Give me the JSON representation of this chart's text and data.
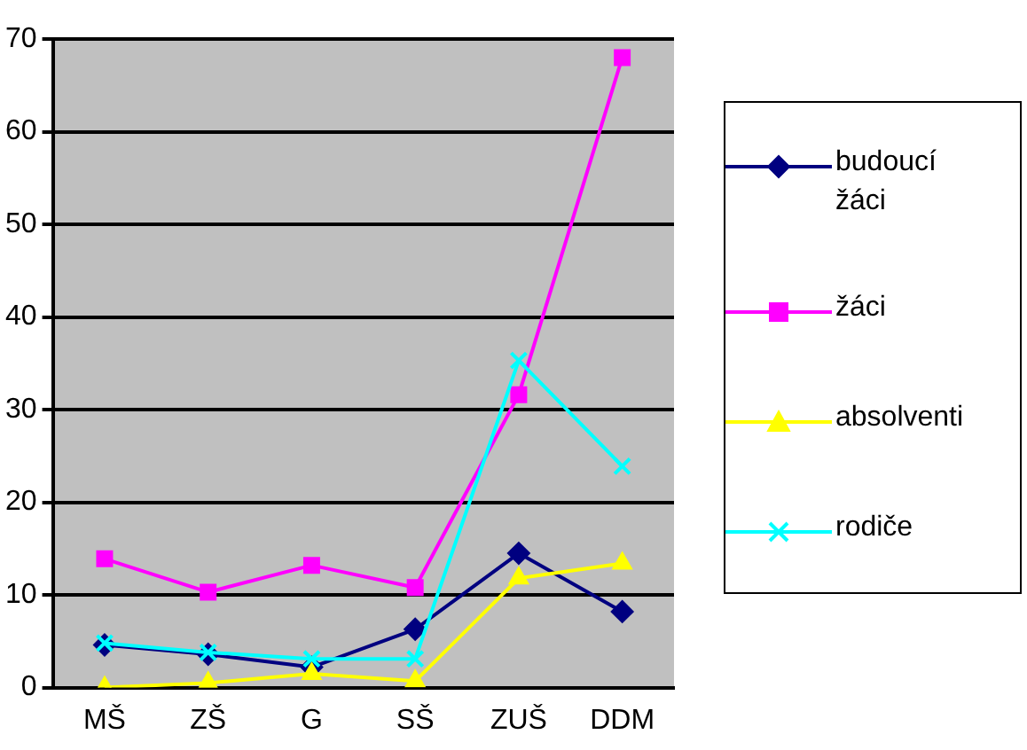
{
  "chart_data": {
    "type": "line",
    "categories": [
      "MŠ",
      "ZŠ",
      "G",
      "SŠ",
      "ZUŠ",
      "DDM"
    ],
    "series": [
      {
        "name": "budoucí žáci",
        "color": "#000080",
        "marker": "diamond",
        "values": [
          4.6,
          3.6,
          2.2,
          6.3,
          14.5,
          8.2
        ]
      },
      {
        "name": "žáci",
        "color": "#ff00ff",
        "marker": "square",
        "values": [
          13.9,
          10.3,
          13.2,
          10.8,
          31.6,
          68
        ]
      },
      {
        "name": "absolventi",
        "color": "#ffff00",
        "marker": "triangle",
        "values": [
          0,
          0.5,
          1.5,
          0.7,
          11.8,
          13.4
        ]
      },
      {
        "name": "rodiče",
        "color": "#00ffff",
        "marker": "cross",
        "values": [
          4.8,
          3.8,
          3.1,
          3.1,
          35.3,
          23.9
        ]
      }
    ],
    "ylim": [
      0,
      70
    ],
    "yticks": [
      0,
      10,
      20,
      30,
      40,
      50,
      60,
      70
    ],
    "grid": "y",
    "legend": "right"
  }
}
